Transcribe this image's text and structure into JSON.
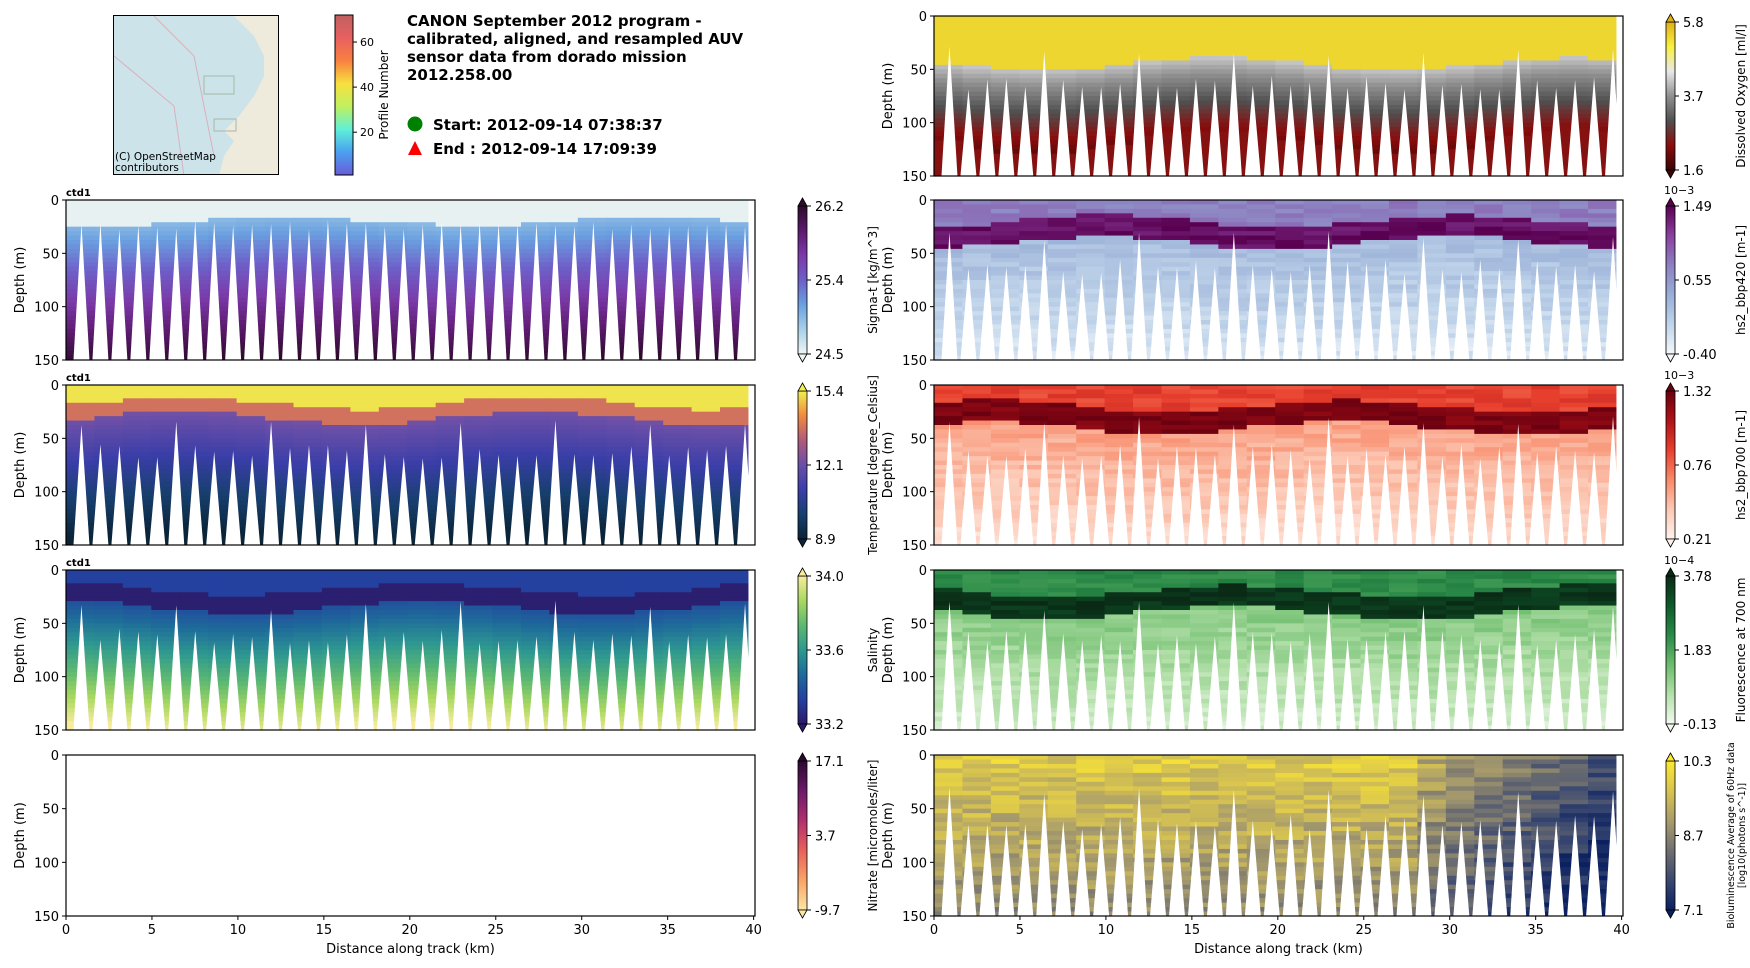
{
  "header": {
    "title": "CANON September 2012 program -\ncalibrated, aligned, and resampled AUV\nsensor data from dorado mission\n2012.258.00",
    "start_label": "Start: 2012-09-14 07:38:37",
    "end_label": "End  : 2012-09-14 17:09:39",
    "start_marker_color": "#008000",
    "end_marker_color": "#ff0000"
  },
  "map": {
    "attribution": "(C) OpenStreetMap\ncontributors",
    "colorbar_label": "Profile Number",
    "colorbar_ticks": [
      "20",
      "40",
      "60"
    ],
    "colorbar_range": [
      1,
      72
    ]
  },
  "chart_data": [
    {
      "type": "heatmap",
      "id": "sigma-t",
      "title": "ctd1",
      "xlabel": "",
      "ylabel": "Depth (m)",
      "xlim": [
        0,
        40
      ],
      "ylim": [
        150,
        0
      ],
      "yticks": [
        "0",
        "50",
        "100",
        "150"
      ],
      "xticks": [],
      "colorbar_label": "Sigma-t [kg/m^3]",
      "colorbar_ticks": [
        "26.2",
        "25.4",
        "24.5"
      ],
      "colorbar_range": [
        24.5,
        26.2
      ],
      "colormap": [
        "#f0f5f3",
        "#a8d0e8",
        "#6aa0e0",
        "#6e5fc8",
        "#7a3aa8",
        "#5c1a6e",
        "#2e0a2c"
      ],
      "surface_depth": 20,
      "n_profiles": 72
    },
    {
      "type": "heatmap",
      "id": "temperature",
      "title": "ctd1",
      "xlabel": "",
      "ylabel": "Depth (m)",
      "xlim": [
        0,
        40
      ],
      "ylim": [
        150,
        0
      ],
      "yticks": [
        "0",
        "50",
        "100",
        "150"
      ],
      "xticks": [],
      "colorbar_label": "Temperature [degree_Celsius]",
      "colorbar_ticks": [
        "15.4",
        "12.1",
        "8.9"
      ],
      "colorbar_range": [
        8.9,
        15.4
      ],
      "colormap": [
        "#0a2438",
        "#173f6e",
        "#3a3ea8",
        "#6a4fa8",
        "#b05a7c",
        "#f08a40",
        "#f0f050"
      ],
      "surface_depth": 25,
      "n_profiles": 72
    },
    {
      "type": "heatmap",
      "id": "salinity",
      "title": "ctd1",
      "xlabel": "",
      "ylabel": "Depth (m)",
      "xlim": [
        0,
        40
      ],
      "ylim": [
        150,
        0
      ],
      "yticks": [
        "0",
        "50",
        "100",
        "150"
      ],
      "xticks": [],
      "colorbar_label": "Salinity",
      "colorbar_ticks": [
        "34.0",
        "33.6",
        "33.2"
      ],
      "colorbar_range": [
        33.2,
        34.0
      ],
      "colormap": [
        "#2c1a6a",
        "#2440a0",
        "#1e6a9a",
        "#2e9890",
        "#5cb872",
        "#a8d860",
        "#f8ec9c"
      ],
      "surface_depth": 30,
      "n_profiles": 72
    },
    {
      "type": "heatmap",
      "id": "nitrate",
      "title": "",
      "xlabel": "Distance along track (km)",
      "ylabel": "Depth (m)",
      "xlim": [
        0,
        40
      ],
      "ylim": [
        150,
        0
      ],
      "yticks": [
        "0",
        "50",
        "100",
        "150"
      ],
      "xticks": [
        "0",
        "5",
        "10",
        "15",
        "20",
        "25",
        "30",
        "35",
        "40"
      ],
      "colorbar_label": "Nitrate [micromoles/liter]",
      "colorbar_ticks": [
        "17.1",
        "3.7",
        "-9.7"
      ],
      "colorbar_range": [
        -9.7,
        17.1
      ],
      "colormap": [
        "#fce6a4",
        "#f8a468",
        "#e8605a",
        "#b0306e",
        "#6c1a6a",
        "#2a0a30"
      ],
      "empty": true
    },
    {
      "type": "heatmap",
      "id": "dissolved-oxygen",
      "title": "",
      "xlabel": "",
      "ylabel": "Depth (m)",
      "xlim": [
        0,
        40
      ],
      "ylim": [
        150,
        0
      ],
      "yticks": [
        "0",
        "50",
        "100",
        "150"
      ],
      "xticks": [],
      "colorbar_label": "Dissolved Oxygen [ml/l]",
      "colorbar_ticks": [
        "5.8",
        "3.7",
        "1.6"
      ],
      "colorbar_range": [
        1.6,
        5.8
      ],
      "colormap": [
        "#3a0606",
        "#8a0c0c",
        "#505050",
        "#909090",
        "#e8e8e8",
        "#f8f040",
        "#e0b018"
      ],
      "surface_depth": 45,
      "n_profiles": 72
    },
    {
      "type": "heatmap",
      "id": "bbp420",
      "title": "",
      "xlabel": "",
      "ylabel": "Depth (m)",
      "xlim": [
        0,
        40
      ],
      "ylim": [
        150,
        0
      ],
      "yticks": [
        "0",
        "50",
        "100",
        "150"
      ],
      "xticks": [],
      "colorbar_label": "hs2_bbp420 [m-1]",
      "colorbar_ticks": [
        "1.49",
        "0.55",
        "-0.40"
      ],
      "colorbar_exponent": "10−3",
      "colorbar_range": [
        -0.4,
        1.49
      ],
      "colormap": [
        "#f4f8fb",
        "#c0d4ea",
        "#98aed6",
        "#8c80c0",
        "#8a40a0",
        "#5a0050"
      ],
      "surface_depth": 30,
      "n_profiles": 72
    },
    {
      "type": "heatmap",
      "id": "bbp700",
      "title": "",
      "xlabel": "",
      "ylabel": "Depth (m)",
      "xlim": [
        0,
        40
      ],
      "ylim": [
        150,
        0
      ],
      "yticks": [
        "0",
        "50",
        "100",
        "150"
      ],
      "xticks": [],
      "colorbar_label": "hs2_bbp700 [m-1]",
      "colorbar_ticks": [
        "1.32",
        "0.76",
        "0.21"
      ],
      "colorbar_exponent": "10−3",
      "colorbar_range": [
        0.21,
        1.32
      ],
      "colormap": [
        "#fff2ee",
        "#fcc8b4",
        "#f88a6a",
        "#e8402e",
        "#b01218",
        "#6a0010"
      ],
      "surface_depth": 30,
      "n_profiles": 72
    },
    {
      "type": "heatmap",
      "id": "fluorescence",
      "title": "",
      "xlabel": "",
      "ylabel": "Depth (m)",
      "xlim": [
        0,
        40
      ],
      "ylim": [
        150,
        0
      ],
      "yticks": [
        "0",
        "50",
        "100",
        "150"
      ],
      "xticks": [],
      "colorbar_label": "Fluorescence at 700 nm",
      "colorbar_ticks": [
        "3.78",
        "1.83",
        "-0.13"
      ],
      "colorbar_exponent": "10−4",
      "colorbar_range": [
        -0.13,
        3.78
      ],
      "colormap": [
        "#f2faf0",
        "#b4e0aa",
        "#6cbc6c",
        "#2a8a48",
        "#0e5a2a",
        "#0a2a16"
      ],
      "surface_depth": 30,
      "n_profiles": 72
    },
    {
      "type": "heatmap",
      "id": "bioluminescence",
      "title": "",
      "xlabel": "Distance along track (km)",
      "ylabel": "Depth (m)",
      "xlim": [
        0,
        40
      ],
      "ylim": [
        150,
        0
      ],
      "yticks": [
        "0",
        "50",
        "100",
        "150"
      ],
      "xticks": [
        "0",
        "5",
        "10",
        "15",
        "20",
        "25",
        "30",
        "35",
        "40"
      ],
      "colorbar_label": "Bioluminescence Average of 60Hz data\n[log10(photons s^-1)]",
      "colorbar_ticks": [
        "10.3",
        "8.7",
        "7.1"
      ],
      "colorbar_range": [
        7.1,
        10.3
      ],
      "colormap": [
        "#0a2060",
        "#3a4870",
        "#707070",
        "#a89c6c",
        "#d8c450",
        "#fce830"
      ],
      "n_profiles": 72
    }
  ]
}
